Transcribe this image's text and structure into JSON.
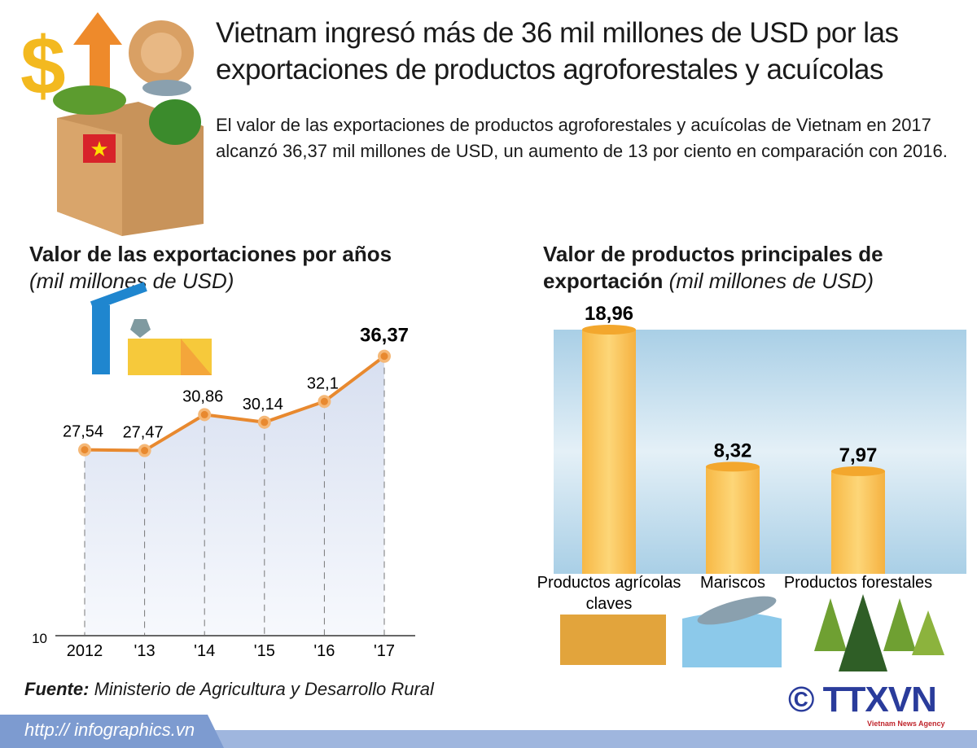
{
  "header": {
    "title": "Vietnam ingresó más de 36 mil millones de USD por las exportaciones de productos agroforestales y acuícolas",
    "intro": "El valor de las exportaciones de productos agroforestales y acuícolas de Vietnam en 2017 alcanzó 36,37 mil millones de USD, un aumento de 13 por ciento en comparación con 2016."
  },
  "chart_data": [
    {
      "type": "line",
      "title": "Valor de las exportaciones por años",
      "subtitle": "(mil millones de USD)",
      "categories": [
        "2012",
        "'13",
        "'14",
        "'15",
        "'16",
        "'17"
      ],
      "values": [
        27.54,
        27.47,
        30.86,
        30.14,
        32.1,
        36.37
      ],
      "labels": [
        "27,54",
        "27,47",
        "30,86",
        "30,14",
        "32,1",
        "36,37"
      ],
      "y_baseline_label": "10",
      "ylim": [
        10,
        38
      ],
      "line_color": "#e8892f",
      "area_color": "#d7dff0"
    },
    {
      "type": "bar",
      "title": "Valor de productos principales de",
      "title2": "exportación",
      "subtitle": "(mil millones de USD)",
      "categories": [
        "Productos agrícolas claves",
        "Mariscos",
        "Productos forestales"
      ],
      "values": [
        18.96,
        8.32,
        7.97
      ],
      "labels": [
        "18,96",
        "8,32",
        "7,97"
      ],
      "ylim": [
        0,
        19
      ],
      "bar_color": "#f9c35a"
    }
  ],
  "footer": {
    "source_label": "Fuente:",
    "source": "Ministerio de Agricultura y Desarrollo Rural",
    "url": "http:// infographics.vn",
    "logo": "TTXVN",
    "agency": "Vietnam News Agency",
    "copyright": "©"
  }
}
